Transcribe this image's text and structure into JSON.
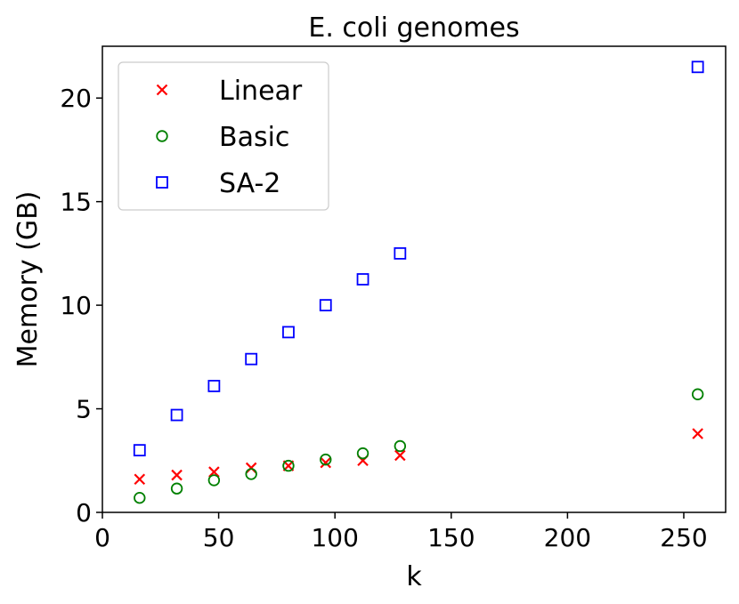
{
  "chart_data": {
    "type": "scatter",
    "title": "E. coli genomes",
    "xlabel": "k",
    "ylabel": "Memory (GB)",
    "xlim": [
      0,
      268
    ],
    "ylim": [
      0,
      22.5
    ],
    "xticks": [
      0,
      50,
      100,
      150,
      200,
      250
    ],
    "yticks": [
      0,
      5,
      10,
      15,
      20
    ],
    "grid": false,
    "legend_position": "top-left",
    "series": [
      {
        "name": "Linear",
        "marker": "x",
        "color": "#ff0000",
        "x": [
          16,
          32,
          48,
          64,
          80,
          96,
          112,
          128,
          256
        ],
        "y": [
          1.6,
          1.8,
          1.95,
          2.15,
          2.25,
          2.4,
          2.5,
          2.75,
          3.8
        ]
      },
      {
        "name": "Basic",
        "marker": "circle",
        "color": "#008000",
        "x": [
          16,
          32,
          48,
          64,
          80,
          96,
          112,
          128,
          256
        ],
        "y": [
          0.7,
          1.15,
          1.55,
          1.85,
          2.25,
          2.55,
          2.85,
          3.2,
          5.7
        ]
      },
      {
        "name": "SA-2",
        "marker": "square",
        "color": "#0000ff",
        "x": [
          16,
          32,
          48,
          64,
          80,
          96,
          112,
          128,
          256
        ],
        "y": [
          3.0,
          4.7,
          6.1,
          7.4,
          8.7,
          10.0,
          11.25,
          12.5,
          21.5
        ]
      }
    ]
  }
}
